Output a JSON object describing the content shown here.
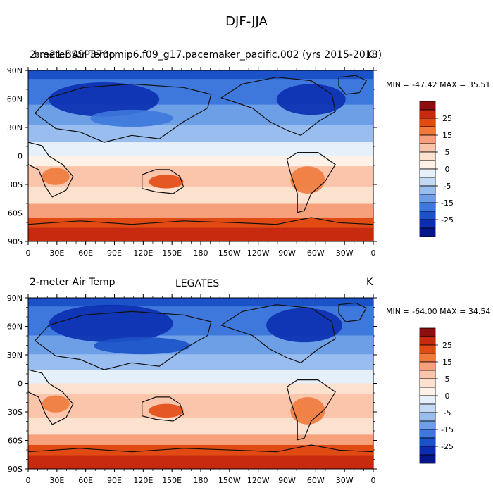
{
  "title": "DJF-JJA",
  "units": "K",
  "lon_ticks": [
    "0",
    "30E",
    "60E",
    "90E",
    "120E",
    "150E",
    "180",
    "150W",
    "120W",
    "90W",
    "60W",
    "30W",
    "0"
  ],
  "lat_ticks": [
    "90N",
    "60N",
    "30N",
    "0",
    "30S",
    "60S",
    "90S"
  ],
  "colorbar": {
    "labels": [
      "25",
      "15",
      "5",
      "0",
      "-5",
      "-15",
      "-25"
    ],
    "colors": [
      "#8b0f0f",
      "#c72a0f",
      "#e24a14",
      "#ef7a3c",
      "#f6a07c",
      "#fbc5ab",
      "#fde1cf",
      "#fdf1e8",
      "#e6f0fb",
      "#c3d9f4",
      "#98bdee",
      "#6c9fe6",
      "#3e78dc",
      "#1c52c8",
      "#0b2db0",
      "#05168a"
    ]
  },
  "panels": [
    {
      "left_title": "2-meter Air Temp",
      "overlap_title": "b.e21.BSSP370cmip6.f09_g17.pacemaker_pacific.002 (yrs 2015-2018)",
      "center_title": "",
      "units": "K",
      "minmax": "MIN = -47.42 MAX =  35.51"
    },
    {
      "left_title": "2-meter Air Temp",
      "overlap_title": "",
      "center_title": "LEGATES",
      "units": "K",
      "minmax": "MIN = -64.00 MAX =  34.54"
    }
  ]
}
